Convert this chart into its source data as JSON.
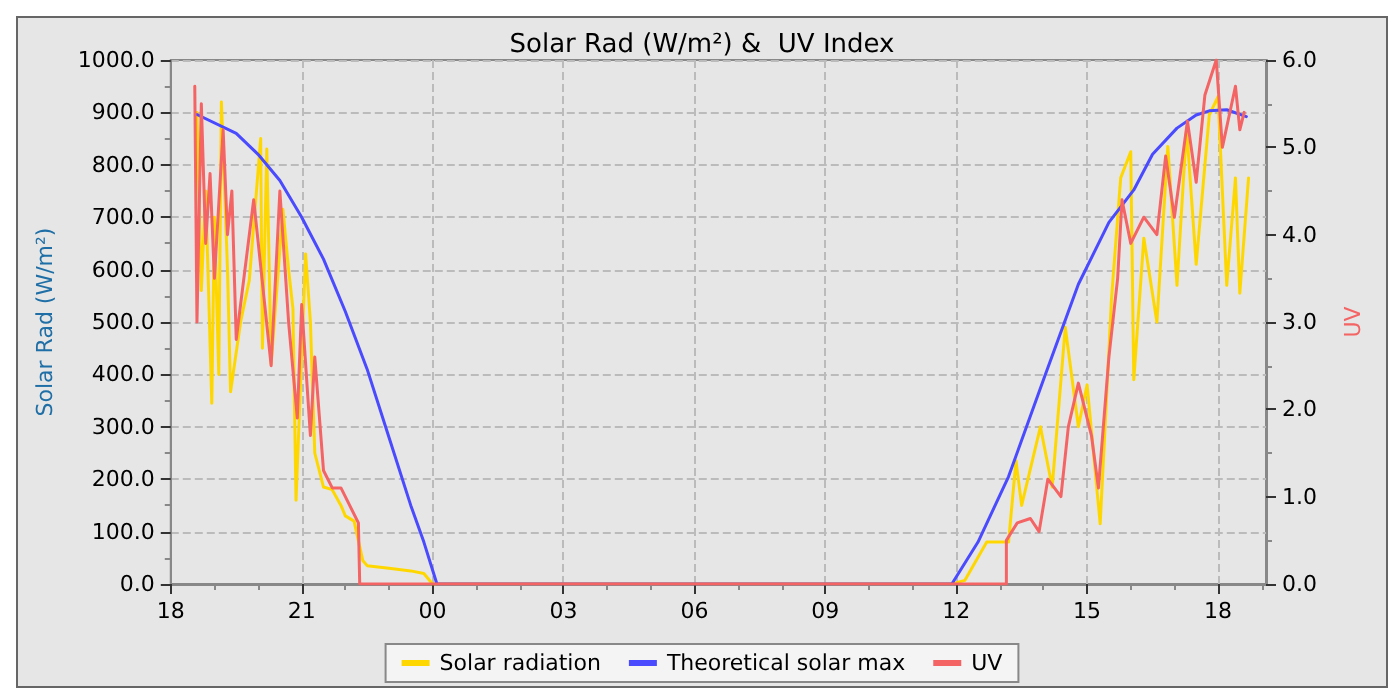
{
  "chart_data": {
    "type": "line",
    "title": "Solar Rad (W/m²) &  UV Index",
    "ylabel": "Solar Rad (W/m²)",
    "y2label": "UV",
    "xlim": [
      18,
      43.1
    ],
    "xticks": [
      {
        "value": 18,
        "label": "18"
      },
      {
        "value": 21,
        "label": "21"
      },
      {
        "value": 24,
        "label": "00"
      },
      {
        "value": 27,
        "label": "03"
      },
      {
        "value": 30,
        "label": "06"
      },
      {
        "value": 33,
        "label": "09"
      },
      {
        "value": 36,
        "label": "12"
      },
      {
        "value": 39,
        "label": "15"
      },
      {
        "value": 42,
        "label": "18"
      }
    ],
    "ylim": [
      0,
      1000
    ],
    "yticks": [
      {
        "value": 0,
        "label": "0.0"
      },
      {
        "value": 100,
        "label": "100.0"
      },
      {
        "value": 200,
        "label": "200.0"
      },
      {
        "value": 300,
        "label": "300.0"
      },
      {
        "value": 400,
        "label": "400.0"
      },
      {
        "value": 500,
        "label": "500.0"
      },
      {
        "value": 600,
        "label": "600.0"
      },
      {
        "value": 700,
        "label": "700.0"
      },
      {
        "value": 800,
        "label": "800.0"
      },
      {
        "value": 900,
        "label": "900.0"
      },
      {
        "value": 1000,
        "label": "1000.0"
      }
    ],
    "y2lim": [
      0,
      6
    ],
    "y2ticks": [
      {
        "value": 0,
        "label": "0.0"
      },
      {
        "value": 1,
        "label": "1.0"
      },
      {
        "value": 2,
        "label": "2.0"
      },
      {
        "value": 3,
        "label": "3.0"
      },
      {
        "value": 4,
        "label": "4.0"
      },
      {
        "value": 5,
        "label": "5.0"
      },
      {
        "value": 6,
        "label": "6.0"
      }
    ],
    "grid": true,
    "legend": "bottom",
    "marker": "none",
    "line_style": "solid",
    "series": [
      {
        "name": "Solar radiation",
        "color": "#ffd700",
        "x": [
          18.6,
          18.7,
          18.8,
          18.94,
          19.0,
          19.1,
          19.16,
          19.3,
          19.37,
          19.6,
          19.8,
          20.06,
          20.1,
          20.2,
          20.3,
          20.57,
          20.7,
          20.8,
          20.87,
          21.09,
          21.2,
          21.3,
          21.5,
          21.7,
          21.9,
          22.0,
          22.2,
          22.4,
          22.5,
          23.0,
          23.5,
          23.8,
          24.0,
          35.9,
          36.2,
          36.7,
          37.2,
          37.37,
          37.5,
          37.93,
          38.2,
          38.5,
          38.8,
          39.0,
          39.3,
          39.56,
          39.77,
          40.0,
          40.07,
          40.3,
          40.6,
          40.85,
          41.06,
          41.28,
          41.5,
          41.8,
          42.0,
          42.2,
          42.4,
          42.5,
          42.7
        ],
        "values": [
          900,
          560,
          750,
          345,
          700,
          400,
          920,
          600,
          367,
          500,
          580,
          850,
          450,
          830,
          420,
          715,
          600,
          525,
          160,
          630,
          500,
          250,
          185,
          180,
          150,
          130,
          120,
          45,
          35,
          30,
          25,
          20,
          0,
          0,
          7,
          80,
          80,
          235,
          150,
          300,
          185,
          490,
          300,
          380,
          115,
          545,
          775,
          825,
          390,
          660,
          500,
          835,
          570,
          870,
          610,
          895,
          930,
          570,
          775,
          555,
          775
        ]
      },
      {
        "name": "Theoretical solar max",
        "color": "#4a4aff",
        "x": [
          18.6,
          19.5,
          20.0,
          20.5,
          21.0,
          21.5,
          22.0,
          22.5,
          23.0,
          23.5,
          23.8,
          24.1,
          35.9,
          36.5,
          37.2,
          38.0,
          38.8,
          39.5,
          40.07,
          40.5,
          41.06,
          41.5,
          41.8,
          42.2,
          42.65
        ],
        "values": [
          896,
          860,
          820,
          770,
          700,
          620,
          520,
          410,
          280,
          150,
          80,
          0,
          0,
          80,
          205,
          390,
          572,
          690,
          752,
          820,
          870,
          895,
          903,
          905,
          892
        ]
      },
      {
        "name": "UV",
        "color": "#f46464",
        "axis": "y2",
        "x": [
          18.55,
          18.6,
          18.7,
          18.8,
          18.9,
          19.0,
          19.2,
          19.3,
          19.4,
          19.5,
          19.6,
          19.9,
          20.3,
          20.5,
          20.7,
          20.9,
          21.0,
          21.2,
          21.3,
          21.5,
          21.7,
          21.9,
          22.1,
          22.3,
          22.33,
          37.15,
          37.15,
          37.4,
          37.7,
          37.9,
          38.1,
          38.4,
          38.57,
          38.8,
          39.1,
          39.26,
          39.5,
          39.7,
          39.8,
          40.0,
          40.3,
          40.6,
          40.8,
          41.0,
          41.3,
          41.5,
          41.7,
          41.96,
          42.1,
          42.4,
          42.5,
          42.6
        ],
        "values": [
          5.7,
          3.0,
          5.5,
          3.9,
          4.7,
          3.5,
          5.2,
          4.0,
          4.5,
          2.8,
          3.2,
          4.4,
          2.5,
          4.5,
          3.0,
          1.9,
          3.2,
          1.7,
          2.6,
          1.3,
          1.1,
          1.1,
          0.9,
          0.7,
          0,
          0,
          0.5,
          0.7,
          0.75,
          0.6,
          1.2,
          1.0,
          1.8,
          2.3,
          1.7,
          1.1,
          2.6,
          3.5,
          4.4,
          3.9,
          4.2,
          4.0,
          4.9,
          4.2,
          5.3,
          4.6,
          5.6,
          6.0,
          5.0,
          5.7,
          5.2,
          5.4
        ]
      }
    ]
  }
}
